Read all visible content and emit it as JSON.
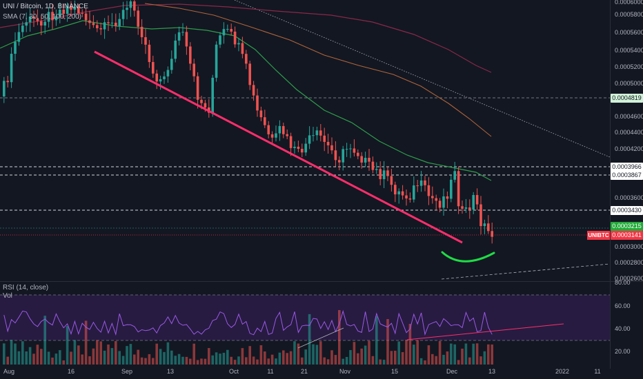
{
  "header": {
    "title": "UNI / Bitcoin, 1D, BINANCE",
    "sma_label": "SMA (7, 30, 50, 100, 200)",
    "rsi_label": "RSI (14, close)",
    "vol_label": "Vol"
  },
  "price_axis": {
    "labels": [
      "0.0006000",
      "0.0005800",
      "0.0005600",
      "0.0005400",
      "0.0005200",
      "0.0005000",
      "0.0004600",
      "0.0004400",
      "0.0004200",
      "0.0003600",
      "0.0003000",
      "0.0002800",
      "0.0002600"
    ]
  },
  "price_tags": [
    {
      "value": "0.0004819",
      "bg": "#d1f2d8",
      "fg": "#131722"
    },
    {
      "value": "0.0003966",
      "bg": "#ffffff",
      "fg": "#131722"
    },
    {
      "value": "0.0003867",
      "bg": "#ffffff",
      "fg": "#131722"
    },
    {
      "value": "0.0003430",
      "bg": "#ffffff",
      "fg": "#131722"
    },
    {
      "value": "0.0003215",
      "bg": "#22ab39",
      "fg": "#ffffff"
    },
    {
      "value": "0.0003141",
      "bg": "#f23645",
      "fg": "#ffffff"
    }
  ],
  "symbol_tag": "UNIBTC",
  "rsi_axis": {
    "labels": [
      "80.00",
      "60.00",
      "40.00",
      "20.00"
    ]
  },
  "time_axis": {
    "labels": [
      "Aug",
      "16",
      "Sep",
      "13",
      "Oct",
      "11",
      "21",
      "Nov",
      "15",
      "Dec",
      "13",
      "2022",
      "11"
    ]
  },
  "colors": {
    "background": "#131722",
    "up": "#26a69a",
    "down": "#ef5350",
    "trendline": "#ff2e6b",
    "sma_green": "#2e9e4b",
    "sma_orange": "#b0643a",
    "sma_maroon": "#8a2848",
    "rsi_line": "#9b59e6",
    "rsi_band": "#2a1c45",
    "arc": "#1fdc45"
  }
}
